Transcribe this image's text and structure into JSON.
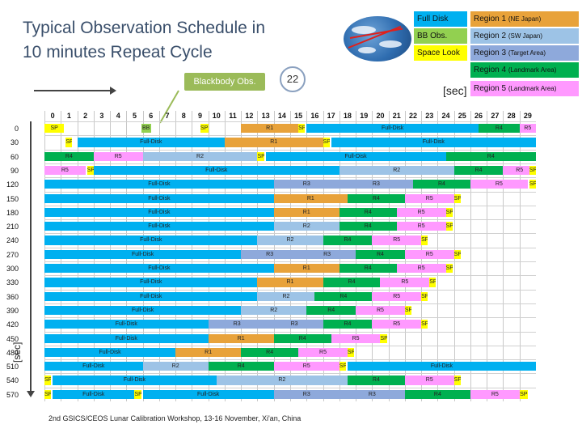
{
  "title_line1": "Typical Observation Schedule in",
  "title_line2": "10 minutes Repeat Cycle",
  "legend": [
    {
      "label": "Full Disk",
      "note": "",
      "color": "#00b0f0"
    },
    {
      "label": "Region 1",
      "note": "(NE Japan)",
      "color": "#e8a23a"
    },
    {
      "label": "BB Obs.",
      "note": "",
      "color": "#92d050"
    },
    {
      "label": "Region 2",
      "note": "(SW Japan)",
      "color": "#9dc3e6"
    },
    {
      "label": "Space Look",
      "note": "",
      "color": "#ffff00"
    },
    {
      "label": "Region 3",
      "note": "(Target Area)",
      "color": "#8ea9db"
    },
    {
      "label": "Region 4",
      "note": "(Landmark Area)",
      "color": "#00b050"
    },
    {
      "label": "Region 5",
      "note": "(Landmark Area)",
      "color": "#ff99ff"
    }
  ],
  "blackbody_label": "Blackbody Obs.",
  "callout_number": "22",
  "sec_top": "[sec]",
  "sec_side": "[sec]",
  "columns": [
    "0",
    "1",
    "2",
    "3",
    "4",
    "5",
    "6",
    "7",
    "8",
    "9",
    "10",
    "11",
    "12",
    "13",
    "14",
    "15",
    "16",
    "17",
    "18",
    "19",
    "20",
    "21",
    "22",
    "23",
    "24",
    "25",
    "26",
    "27",
    "28",
    "29"
  ],
  "rows": [
    "0",
    "30",
    "60",
    "90",
    "120",
    "150",
    "180",
    "210",
    "240",
    "270",
    "300",
    "330",
    "360",
    "390",
    "420",
    "450",
    "480",
    "510",
    "540",
    "570"
  ],
  "footer": "2nd GSICS/CEOS Lunar Calibration Workshop, 13-16 November, Xi'an, China",
  "schedule": [
    [
      [
        "SP",
        0,
        1.2,
        "SL"
      ],
      [
        "BB",
        5.9,
        0.6,
        "BB"
      ],
      [
        "SP",
        9.5,
        0.5,
        "SL"
      ],
      [
        "R1",
        12,
        3.5,
        "R1"
      ],
      [
        "SP",
        15.5,
        0.4,
        "SL"
      ],
      [
        "Full-Disk",
        16,
        10.5,
        "FD"
      ],
      [
        "R4",
        26.5,
        2.5,
        "R4"
      ],
      [
        "R5",
        29,
        1,
        "R5"
      ]
    ],
    [
      [
        "SP",
        1.3,
        0.4,
        "SL"
      ],
      [
        "Full-Disk",
        2,
        9,
        "FD"
      ],
      [
        "R1",
        11,
        6,
        "R1"
      ],
      [
        "SP",
        17,
        0.4,
        "SL"
      ],
      [
        "Full-Disk",
        17.5,
        12.5,
        "FD"
      ]
    ],
    [
      [
        "R4",
        0,
        3,
        "R4"
      ],
      [
        "R5",
        3,
        3,
        "R5"
      ],
      [
        "R2",
        6,
        7,
        "R2"
      ],
      [
        "SP",
        13,
        0.4,
        "SL"
      ],
      [
        "Full-Disk",
        13.5,
        11,
        "FD"
      ],
      [
        "R4",
        24.5,
        5.5,
        "R4"
      ]
    ],
    [
      [
        "R5",
        0,
        2.5,
        "R5"
      ],
      [
        "SP",
        2.6,
        0.4,
        "SL"
      ],
      [
        "Full-Disk",
        3,
        15,
        "FD"
      ],
      [
        "R2",
        18,
        7,
        "R2"
      ],
      [
        "R4",
        25,
        3,
        "R4"
      ],
      [
        "R5",
        28,
        2,
        "R5"
      ],
      [
        "SP",
        29.6,
        0.4,
        "SL"
      ]
    ],
    [
      [
        "Full-Disk",
        0,
        14,
        "FD"
      ],
      [
        "R3",
        14,
        4,
        "R3"
      ],
      [
        "R3",
        18,
        4.5,
        "R3"
      ],
      [
        "R4",
        22.5,
        3.5,
        "R4"
      ],
      [
        "R5",
        26,
        3.5,
        "R5"
      ],
      [
        "SP",
        29.6,
        0.4,
        "SL"
      ]
    ],
    [
      [
        "Full-Disk",
        0,
        14,
        "FD"
      ],
      [
        "R1",
        14,
        4.5,
        "R1"
      ],
      [
        "R4",
        18.5,
        3.5,
        "R4"
      ],
      [
        "R5",
        22,
        3,
        "R5"
      ],
      [
        "SP",
        25,
        0.4,
        "SL"
      ]
    ],
    [
      [
        "Full-Disk",
        0,
        14,
        "FD"
      ],
      [
        "R1",
        14,
        4,
        "R1"
      ],
      [
        "R4",
        18,
        3.5,
        "R4"
      ],
      [
        "R5",
        21.5,
        3,
        "R5"
      ],
      [
        "SP",
        24.5,
        0.4,
        "SL"
      ]
    ],
    [
      [
        "Full-Disk",
        0,
        14,
        "FD"
      ],
      [
        "R2",
        14,
        4,
        "R2"
      ],
      [
        "R4",
        18,
        3.5,
        "R4"
      ],
      [
        "R5",
        21.5,
        3,
        "R5"
      ],
      [
        "SP",
        24.5,
        0.4,
        "SL"
      ]
    ],
    [
      [
        "Full-Disk",
        0,
        13,
        "FD"
      ],
      [
        "R2",
        13,
        4,
        "R2"
      ],
      [
        "R4",
        17,
        3,
        "R4"
      ],
      [
        "R5",
        20,
        3,
        "R5"
      ],
      [
        "SP",
        23,
        0.4,
        "SL"
      ]
    ],
    [
      [
        "Full-Disk",
        0,
        12,
        "FD"
      ],
      [
        "R3",
        12,
        3.5,
        "R3"
      ],
      [
        "R3",
        15.5,
        3.5,
        "R3"
      ],
      [
        "R4",
        19,
        3,
        "R4"
      ],
      [
        "R5",
        22,
        3,
        "R5"
      ],
      [
        "SP",
        25,
        0.4,
        "SL"
      ]
    ],
    [
      [
        "Full-Disk",
        0,
        14,
        "FD"
      ],
      [
        "R1",
        14,
        4,
        "R1"
      ],
      [
        "R4",
        18,
        3.5,
        "R4"
      ],
      [
        "R5",
        21.5,
        3,
        "R5"
      ],
      [
        "SP",
        24.5,
        0.4,
        "SL"
      ]
    ],
    [
      [
        "Full-Disk",
        0,
        13,
        "FD"
      ],
      [
        "R1",
        13,
        4,
        "R1"
      ],
      [
        "R4",
        17,
        3.5,
        "R4"
      ],
      [
        "R5",
        20.5,
        3,
        "R5"
      ],
      [
        "SP",
        23.5,
        0.4,
        "SL"
      ]
    ],
    [
      [
        "Full-Disk",
        0,
        13,
        "FD"
      ],
      [
        "R2",
        13,
        3.5,
        "R2"
      ],
      [
        "R4",
        16.5,
        3.5,
        "R4"
      ],
      [
        "R5",
        20,
        3,
        "R5"
      ],
      [
        "SP",
        23,
        0.4,
        "SL"
      ]
    ],
    [
      [
        "Full-Disk",
        0,
        12,
        "FD"
      ],
      [
        "R2",
        12,
        4,
        "R2"
      ],
      [
        "R4",
        16,
        3,
        "R4"
      ],
      [
        "R5",
        19,
        3,
        "R5"
      ],
      [
        "SP",
        22,
        0.4,
        "SL"
      ]
    ],
    [
      [
        "Full-Disk",
        0,
        10,
        "FD"
      ],
      [
        "R3",
        10,
        3.5,
        "R3"
      ],
      [
        "R3",
        13.5,
        3.5,
        "R3"
      ],
      [
        "R4",
        17,
        3,
        "R4"
      ],
      [
        "R5",
        20,
        3,
        "R5"
      ],
      [
        "SP",
        23,
        0.4,
        "SL"
      ]
    ],
    [
      [
        "Full-Disk",
        0,
        10,
        "FD"
      ],
      [
        "R1",
        10,
        4,
        "R1"
      ],
      [
        "R4",
        14,
        3.5,
        "R4"
      ],
      [
        "R5",
        17.5,
        3,
        "R5"
      ],
      [
        "SP",
        20.5,
        0.4,
        "SL"
      ]
    ],
    [
      [
        "Full-Disk",
        0,
        8,
        "FD"
      ],
      [
        "R1",
        8,
        4,
        "R1"
      ],
      [
        "R4",
        12,
        3.5,
        "R4"
      ],
      [
        "R5",
        15.5,
        3,
        "R5"
      ],
      [
        "SP",
        18.5,
        0.4,
        "SL"
      ]
    ],
    [
      [
        "Full-Disk",
        0,
        6,
        "FD"
      ],
      [
        "R2",
        6,
        4,
        "R2"
      ],
      [
        "R4",
        10,
        4,
        "R4"
      ],
      [
        "R5",
        14,
        4,
        "R5"
      ],
      [
        "SP",
        18,
        0.4,
        "SL"
      ],
      [
        "Full-Disk",
        18.5,
        11.5,
        "FD"
      ]
    ],
    [
      [
        "SP",
        0,
        0.4,
        "SL"
      ],
      [
        "Full-Disk",
        0.5,
        10,
        "FD"
      ],
      [
        "R2",
        10.5,
        8,
        "R2"
      ],
      [
        "R4",
        18.5,
        3.5,
        "R4"
      ],
      [
        "R5",
        22,
        3,
        "R5"
      ],
      [
        "SP",
        25,
        0.4,
        "SL"
      ]
    ],
    [
      [
        "SP",
        0,
        0.4,
        "SL"
      ],
      [
        "Full-Disk",
        0.5,
        5,
        "FD"
      ],
      [
        "SP",
        5.5,
        0.4,
        "SL"
      ],
      [
        "Full-Disk",
        6,
        8,
        "FD"
      ],
      [
        "R3",
        14,
        4,
        "R3"
      ],
      [
        "R3",
        18,
        4,
        "R3"
      ],
      [
        "R4",
        22,
        4,
        "R4"
      ],
      [
        "R5",
        26,
        3,
        "R5"
      ],
      [
        "SP",
        29,
        0.5,
        "SL"
      ]
    ]
  ]
}
